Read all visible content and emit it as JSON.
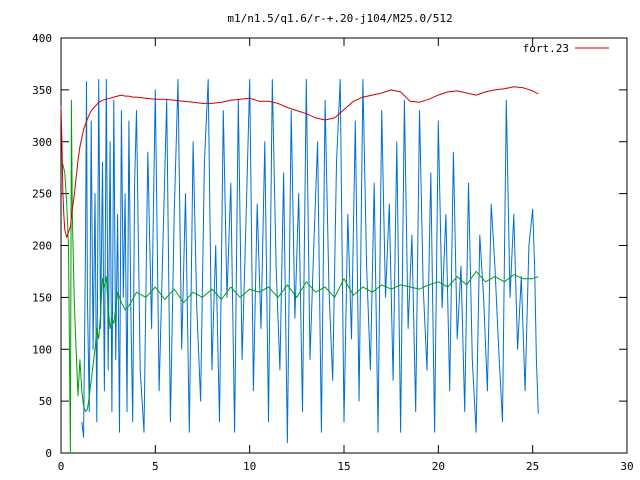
{
  "chart_data": {
    "type": "line",
    "title": "m1/n1.5/q1.6/r-+.20-j104/M25.0/512",
    "xlabel": "",
    "ylabel": "",
    "xlim": [
      0,
      30
    ],
    "ylim": [
      0,
      400
    ],
    "x_ticks": [
      0,
      5,
      10,
      15,
      20,
      25,
      30
    ],
    "y_ticks": [
      0,
      50,
      100,
      150,
      200,
      250,
      300,
      350,
      400
    ],
    "grid": false,
    "legend_position": "top-right",
    "series": [
      {
        "name": "fort.23",
        "color": "#cc0000",
        "x": [
          0.0,
          0.05,
          0.1,
          0.15,
          0.2,
          0.3,
          0.4,
          0.5,
          0.6,
          0.7,
          0.8,
          0.9,
          1.0,
          1.2,
          1.4,
          1.6,
          1.8,
          2.0,
          2.2,
          2.4,
          2.6,
          2.8,
          3.0,
          3.2,
          3.4,
          3.6,
          3.8,
          4.0,
          4.5,
          5.0,
          5.5,
          6.0,
          6.5,
          7.0,
          7.5,
          8.0,
          8.5,
          9.0,
          9.5,
          10.0,
          10.5,
          11.0,
          11.5,
          12.0,
          12.5,
          13.0,
          13.5,
          14.0,
          14.5,
          15.0,
          15.5,
          16.0,
          16.5,
          17.0,
          17.5,
          18.0,
          18.5,
          19.0,
          19.5,
          20.0,
          20.5,
          21.0,
          21.5,
          22.0,
          22.5,
          23.0,
          23.5,
          24.0,
          24.5,
          25.0,
          25.3
        ],
        "values": [
          335,
          300,
          250,
          230,
          215,
          208,
          213,
          218,
          235,
          248,
          265,
          282,
          295,
          312,
          322,
          330,
          334,
          338,
          340,
          341,
          342,
          343,
          344,
          345,
          344,
          344,
          343,
          343,
          342,
          341,
          341,
          340,
          339,
          338,
          337,
          337,
          338,
          340,
          341,
          342,
          339,
          339,
          337,
          333,
          330,
          327,
          323,
          321,
          323,
          331,
          339,
          343,
          345,
          347,
          350,
          348,
          339,
          338,
          341,
          345,
          348,
          349,
          347,
          345,
          348,
          350,
          351,
          353,
          352,
          349,
          346
        ]
      },
      {
        "name": "",
        "color": "#00a000",
        "x": [
          0.0,
          0.1,
          0.2,
          0.3,
          0.4,
          0.5,
          0.55,
          0.6,
          0.7,
          0.8,
          0.9,
          1.0,
          1.1,
          1.2,
          1.3,
          1.4,
          1.5,
          1.6,
          1.7,
          1.8,
          1.9,
          2.0,
          2.1,
          2.2,
          2.3,
          2.4,
          2.5,
          2.6,
          2.7,
          2.8,
          2.9,
          3.0,
          3.2,
          3.4,
          3.6,
          3.8,
          4.0,
          4.5,
          5.0,
          5.5,
          6.0,
          6.5,
          7.0,
          7.5,
          8.0,
          8.5,
          9.0,
          9.5,
          10.0,
          10.5,
          11.0,
          11.5,
          12.0,
          12.5,
          13.0,
          13.5,
          14.0,
          14.5,
          15.0,
          15.5,
          16.0,
          16.5,
          17.0,
          17.5,
          18.0,
          18.5,
          19.0,
          19.5,
          20.0,
          20.5,
          21.0,
          21.5,
          22.0,
          22.5,
          23.0,
          23.5,
          24.0,
          24.5,
          25.0,
          25.3
        ],
        "values": [
          280,
          278,
          270,
          240,
          200,
          0,
          340,
          230,
          150,
          100,
          55,
          90,
          60,
          45,
          40,
          42,
          55,
          70,
          85,
          100,
          120,
          110,
          135,
          168,
          160,
          170,
          140,
          120,
          130,
          125,
          140,
          155,
          145,
          138,
          142,
          148,
          155,
          150,
          160,
          148,
          158,
          145,
          155,
          150,
          158,
          148,
          160,
          150,
          158,
          155,
          160,
          150,
          162,
          150,
          165,
          155,
          160,
          150,
          168,
          152,
          160,
          155,
          162,
          158,
          162,
          160,
          158,
          162,
          165,
          160,
          170,
          162,
          175,
          165,
          170,
          165,
          172,
          168,
          168,
          170
        ]
      },
      {
        "name": "",
        "color": "#0070d0",
        "x": [
          1.1,
          1.2,
          1.3,
          1.35,
          1.4,
          1.5,
          1.6,
          1.7,
          1.8,
          1.9,
          2.0,
          2.1,
          2.2,
          2.3,
          2.4,
          2.5,
          2.6,
          2.7,
          2.8,
          2.9,
          3.0,
          3.1,
          3.2,
          3.3,
          3.4,
          3.5,
          3.6,
          3.7,
          3.8,
          3.9,
          4.0,
          4.2,
          4.4,
          4.6,
          4.8,
          5.0,
          5.2,
          5.4,
          5.6,
          5.8,
          6.0,
          6.2,
          6.4,
          6.6,
          6.8,
          7.0,
          7.2,
          7.4,
          7.6,
          7.8,
          8.0,
          8.2,
          8.4,
          8.6,
          8.8,
          9.0,
          9.2,
          9.4,
          9.6,
          9.8,
          10.0,
          10.2,
          10.4,
          10.6,
          10.8,
          11.0,
          11.2,
          11.4,
          11.6,
          11.8,
          12.0,
          12.2,
          12.4,
          12.6,
          12.8,
          13.0,
          13.2,
          13.4,
          13.6,
          13.8,
          14.0,
          14.2,
          14.4,
          14.6,
          14.8,
          15.0,
          15.2,
          15.4,
          15.6,
          15.8,
          16.0,
          16.2,
          16.4,
          16.6,
          16.8,
          17.0,
          17.2,
          17.4,
          17.6,
          17.8,
          18.0,
          18.2,
          18.4,
          18.6,
          18.8,
          19.0,
          19.2,
          19.4,
          19.6,
          19.8,
          20.0,
          20.2,
          20.4,
          20.6,
          20.8,
          21.0,
          21.2,
          21.4,
          21.6,
          21.8,
          22.0,
          22.2,
          22.4,
          22.6,
          22.8,
          23.0,
          23.2,
          23.4,
          23.6,
          23.8,
          24.0,
          24.2,
          24.4,
          24.6,
          24.8,
          25.0,
          25.1,
          25.2,
          25.3
        ],
        "values": [
          30,
          15,
          200,
          358,
          150,
          40,
          320,
          100,
          250,
          30,
          360,
          120,
          280,
          60,
          360,
          80,
          300,
          40,
          340,
          90,
          230,
          20,
          330,
          150,
          250,
          40,
          320,
          140,
          30,
          260,
          330,
          80,
          20,
          290,
          120,
          350,
          60,
          200,
          340,
          30,
          230,
          360,
          100,
          250,
          20,
          300,
          140,
          50,
          280,
          360,
          80,
          200,
          30,
          330,
          150,
          260,
          20,
          340,
          90,
          220,
          360,
          60,
          240,
          120,
          300,
          30,
          360,
          180,
          80,
          270,
          10,
          330,
          130,
          250,
          40,
          360,
          90,
          200,
          300,
          20,
          340,
          160,
          70,
          280,
          360,
          30,
          230,
          110,
          320,
          50,
          360,
          180,
          80,
          260,
          20,
          330,
          150,
          240,
          70,
          300,
          20,
          340,
          120,
          210,
          40,
          330,
          160,
          80,
          270,
          20,
          320,
          140,
          230,
          60,
          290,
          110,
          180,
          40,
          260,
          90,
          20,
          210,
          150,
          60,
          240,
          180,
          100,
          30,
          340,
          150,
          230,
          100,
          170,
          60,
          200,
          235,
          180,
          90,
          38
        ]
      }
    ]
  }
}
